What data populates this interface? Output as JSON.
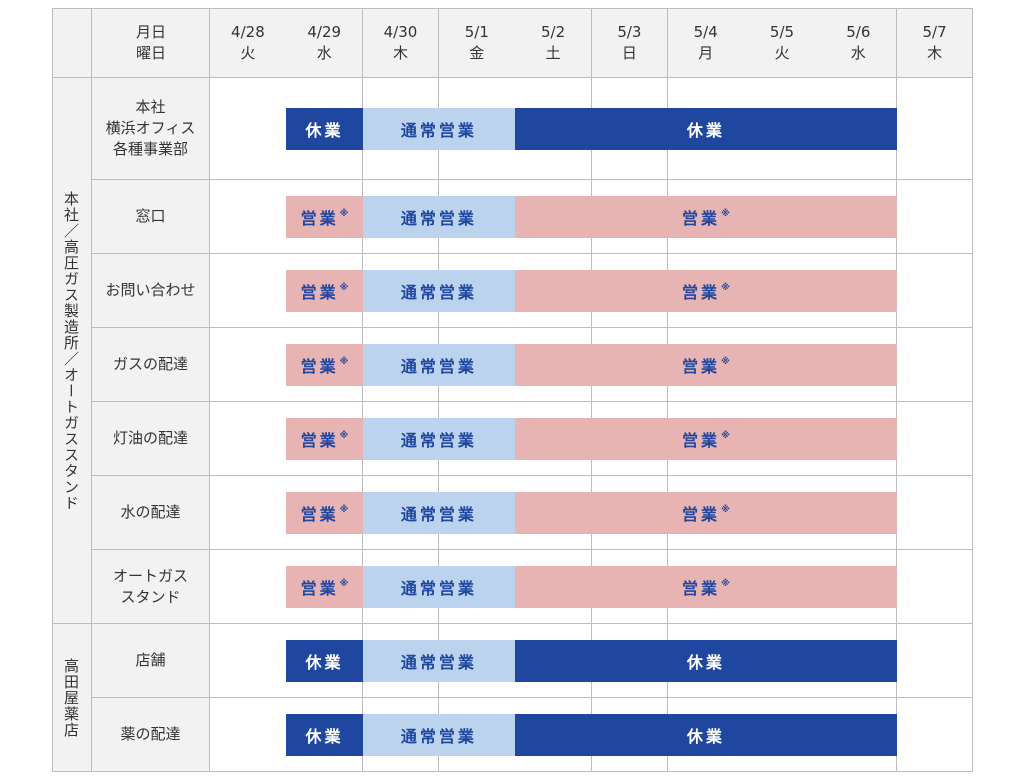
{
  "header": {
    "corner_line1": "月日",
    "corner_line2": "曜日",
    "dates": [
      {
        "date": "4/28",
        "day": "火"
      },
      {
        "date": "4/29",
        "day": "水"
      },
      {
        "date": "4/30",
        "day": "木"
      },
      {
        "date": "5/1",
        "day": "金"
      },
      {
        "date": "5/2",
        "day": "土"
      },
      {
        "date": "5/3",
        "day": "日"
      },
      {
        "date": "5/4",
        "day": "月"
      },
      {
        "date": "5/5",
        "day": "火"
      },
      {
        "date": "5/6",
        "day": "水"
      },
      {
        "date": "5/7",
        "day": "木"
      }
    ]
  },
  "groups": [
    {
      "label": "本社／高圧ガス製造所／オートガススタンド",
      "row_count": 7
    },
    {
      "label": "高田屋薬店",
      "row_count": 2
    }
  ],
  "statuses": {
    "closed": "休業",
    "normal": "通常営業",
    "open": "営業",
    "open_mark": "※"
  },
  "colors": {
    "closed": "#1f47a0",
    "normal": "#bcd3ee",
    "open": "#e8b4b3",
    "label_bg": "#f2f2f2",
    "grid_line": "#bdbdbd"
  },
  "rows": [
    {
      "label": "本社\n横浜オフィス\n各種事業部",
      "segments": [
        {
          "status": "closed",
          "from": 1,
          "to": 1
        },
        {
          "status": "normal",
          "from": 2,
          "to": 3
        },
        {
          "status": "closed",
          "from": 4,
          "to": 8
        }
      ]
    },
    {
      "label": "窓口",
      "segments": [
        {
          "status": "open",
          "from": 1,
          "to": 1
        },
        {
          "status": "normal",
          "from": 2,
          "to": 3
        },
        {
          "status": "open",
          "from": 4,
          "to": 8
        }
      ]
    },
    {
      "label": "お問い合わせ",
      "segments": [
        {
          "status": "open",
          "from": 1,
          "to": 1
        },
        {
          "status": "normal",
          "from": 2,
          "to": 3
        },
        {
          "status": "open",
          "from": 4,
          "to": 8
        }
      ]
    },
    {
      "label": "ガスの配達",
      "segments": [
        {
          "status": "open",
          "from": 1,
          "to": 1
        },
        {
          "status": "normal",
          "from": 2,
          "to": 3
        },
        {
          "status": "open",
          "from": 4,
          "to": 8
        }
      ]
    },
    {
      "label": "灯油の配達",
      "segments": [
        {
          "status": "open",
          "from": 1,
          "to": 1
        },
        {
          "status": "normal",
          "from": 2,
          "to": 3
        },
        {
          "status": "open",
          "from": 4,
          "to": 8
        }
      ]
    },
    {
      "label": "水の配達",
      "segments": [
        {
          "status": "open",
          "from": 1,
          "to": 1
        },
        {
          "status": "normal",
          "from": 2,
          "to": 3
        },
        {
          "status": "open",
          "from": 4,
          "to": 8
        }
      ]
    },
    {
      "label": "オートガス\nスタンド",
      "segments": [
        {
          "status": "open",
          "from": 1,
          "to": 1
        },
        {
          "status": "normal",
          "from": 2,
          "to": 3
        },
        {
          "status": "open",
          "from": 4,
          "to": 8
        }
      ]
    },
    {
      "label": "店舗",
      "segments": [
        {
          "status": "closed",
          "from": 1,
          "to": 1
        },
        {
          "status": "normal",
          "from": 2,
          "to": 3
        },
        {
          "status": "closed",
          "from": 4,
          "to": 8
        }
      ]
    },
    {
      "label": "薬の配達",
      "segments": [
        {
          "status": "closed",
          "from": 1,
          "to": 1
        },
        {
          "status": "normal",
          "from": 2,
          "to": 3
        },
        {
          "status": "closed",
          "from": 4,
          "to": 8
        }
      ]
    }
  ]
}
